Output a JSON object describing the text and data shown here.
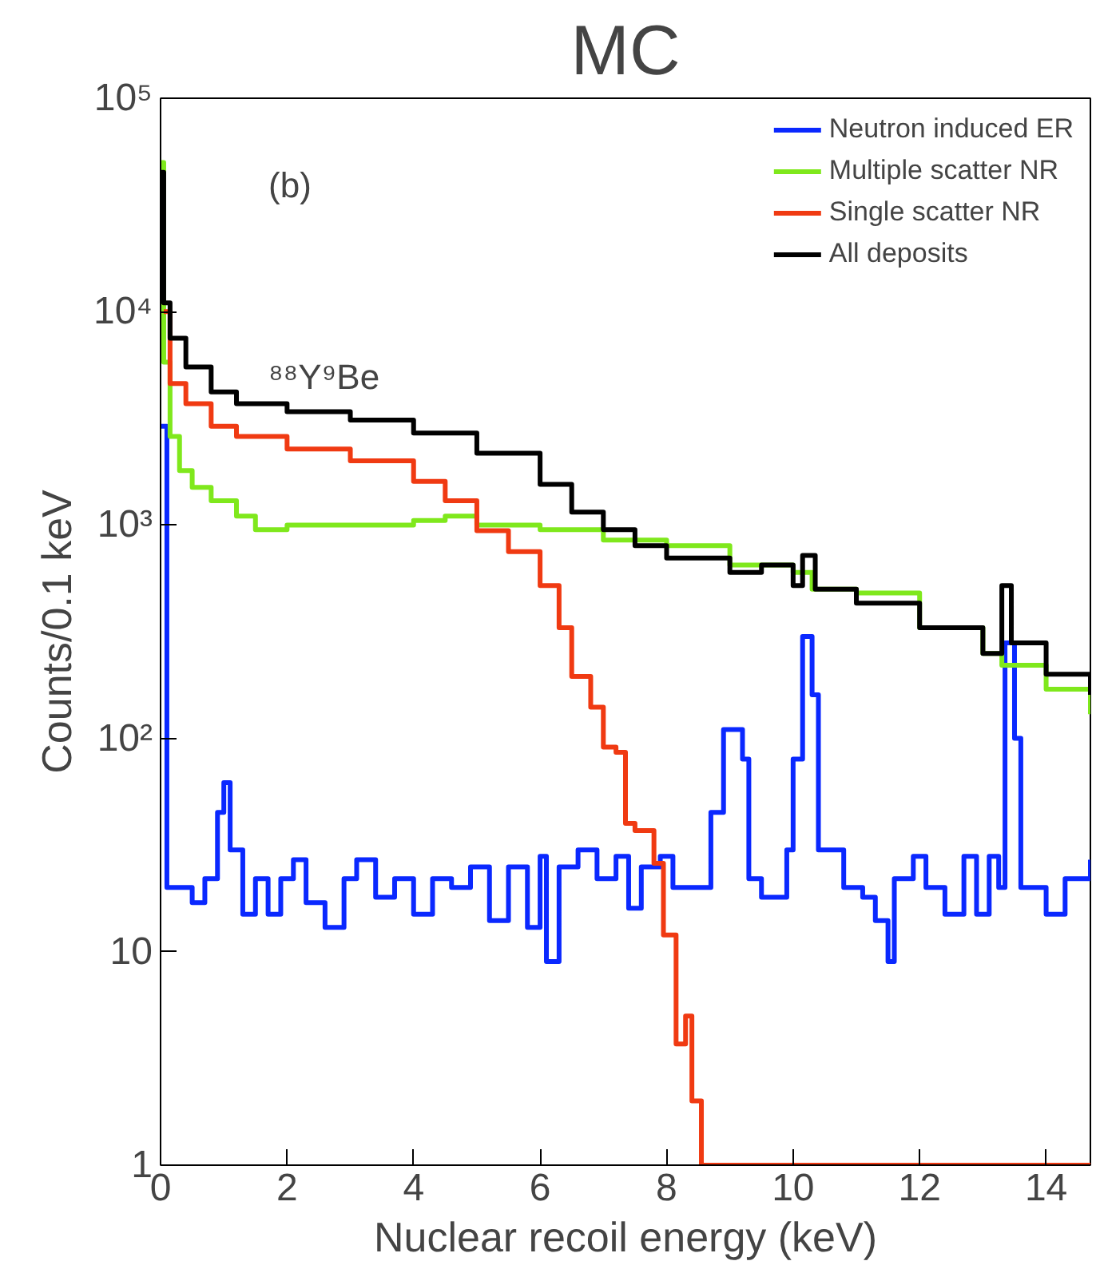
{
  "chart_data": {
    "type": "step",
    "title": "MC",
    "xlabel": "Nuclear recoil energy (keV)",
    "ylabel": "Counts/0.1 keV",
    "annotations": [
      "(b)",
      "⁸⁸Y⁹Be"
    ],
    "log": "y",
    "xlim": [
      0,
      14.7
    ],
    "ylim": [
      1,
      100000
    ],
    "xticks": [
      0,
      2,
      4,
      6,
      8,
      10,
      12,
      14
    ],
    "yticks": [
      1,
      10,
      {
        "value": 100,
        "label": "10²"
      },
      {
        "value": 1000,
        "label": "10³"
      },
      {
        "value": 10000,
        "label": "10⁴"
      },
      {
        "value": 100000,
        "label": "10⁵"
      }
    ],
    "grid": false,
    "legend": "top right",
    "series": [
      {
        "name": "Neutron induced ER",
        "color": "#0a28ff",
        "x": [
          0,
          0.1,
          0.3,
          0.5,
          0.7,
          0.9,
          1.0,
          1.1,
          1.3,
          1.5,
          1.7,
          1.9,
          2.1,
          2.3,
          2.6,
          2.9,
          3.1,
          3.4,
          3.7,
          4,
          4.3,
          4.6,
          4.9,
          5.2,
          5.5,
          5.8,
          6,
          6.1,
          6.3,
          6.6,
          6.9,
          7.2,
          7.4,
          7.6,
          7.9,
          8.1,
          8.5,
          8.7,
          8.9,
          9.2,
          9.3,
          9.5,
          9.9,
          10.0,
          10.15,
          10.3,
          10.4,
          10.8,
          11.1,
          11.3,
          11.5,
          11.6,
          11.9,
          12.1,
          12.4,
          12.7,
          12.9,
          13.1,
          13.25,
          13.35,
          13.5,
          13.6,
          14,
          14.3,
          14.7
        ],
        "values": [
          2900,
          20,
          20,
          17,
          22,
          45,
          62,
          30,
          15,
          22,
          15,
          22,
          27,
          17,
          13,
          22,
          27,
          18,
          22,
          15,
          22,
          20,
          25,
          14,
          25,
          13,
          28,
          9,
          25,
          30,
          22,
          28,
          16,
          25,
          28,
          20,
          20,
          45,
          110,
          80,
          22,
          18,
          30,
          80,
          300,
          160,
          30,
          20,
          18,
          14,
          9,
          22,
          28,
          20,
          15,
          28,
          15,
          28,
          20,
          280,
          100,
          20,
          15,
          22,
          27
        ]
      },
      {
        "name": "Multiple scatter NR",
        "color": "#7fe81c",
        "x": [
          0,
          0.05,
          0.15,
          0.3,
          0.5,
          0.8,
          1.2,
          1.5,
          2,
          3,
          4,
          4.5,
          5,
          6,
          7,
          8,
          9,
          10,
          10.3,
          11,
          12,
          13,
          13.3,
          14,
          14.7
        ],
        "values": [
          50000,
          5800,
          2600,
          1800,
          1500,
          1300,
          1100,
          950,
          1000,
          1000,
          1050,
          1100,
          1000,
          950,
          850,
          800,
          650,
          600,
          500,
          480,
          330,
          250,
          220,
          170,
          130
        ]
      },
      {
        "name": "Single scatter NR",
        "color": "#f03a12",
        "x": [
          0.05,
          0.15,
          0.4,
          0.8,
          1.2,
          2,
          3,
          4,
          4.5,
          5,
          5.5,
          6,
          6.3,
          6.5,
          6.8,
          7,
          7.2,
          7.35,
          7.5,
          7.8,
          7.95,
          8.15,
          8.3,
          8.4,
          8.55,
          14.7
        ],
        "values": [
          10000,
          4600,
          3700,
          2900,
          2600,
          2270,
          2000,
          1600,
          1300,
          940,
          750,
          520,
          330,
          195,
          140,
          91,
          86,
          40,
          37,
          26,
          12,
          3.7,
          5,
          2,
          1,
          1
        ]
      },
      {
        "name": "All deposits",
        "color": "#000000",
        "x": [
          0,
          0.05,
          0.15,
          0.4,
          0.8,
          1.2,
          2,
          3,
          4,
          5,
          6,
          6.5,
          7,
          7.5,
          8,
          9,
          9.5,
          10,
          10.15,
          10.35,
          11,
          12,
          13,
          13.3,
          13.45,
          14,
          14.7
        ],
        "values": [
          45000,
          11000,
          7500,
          5500,
          4200,
          3700,
          3400,
          3100,
          2700,
          2170,
          1550,
          1150,
          950,
          800,
          700,
          600,
          650,
          520,
          720,
          500,
          430,
          330,
          250,
          520,
          280,
          200,
          160
        ]
      }
    ]
  }
}
